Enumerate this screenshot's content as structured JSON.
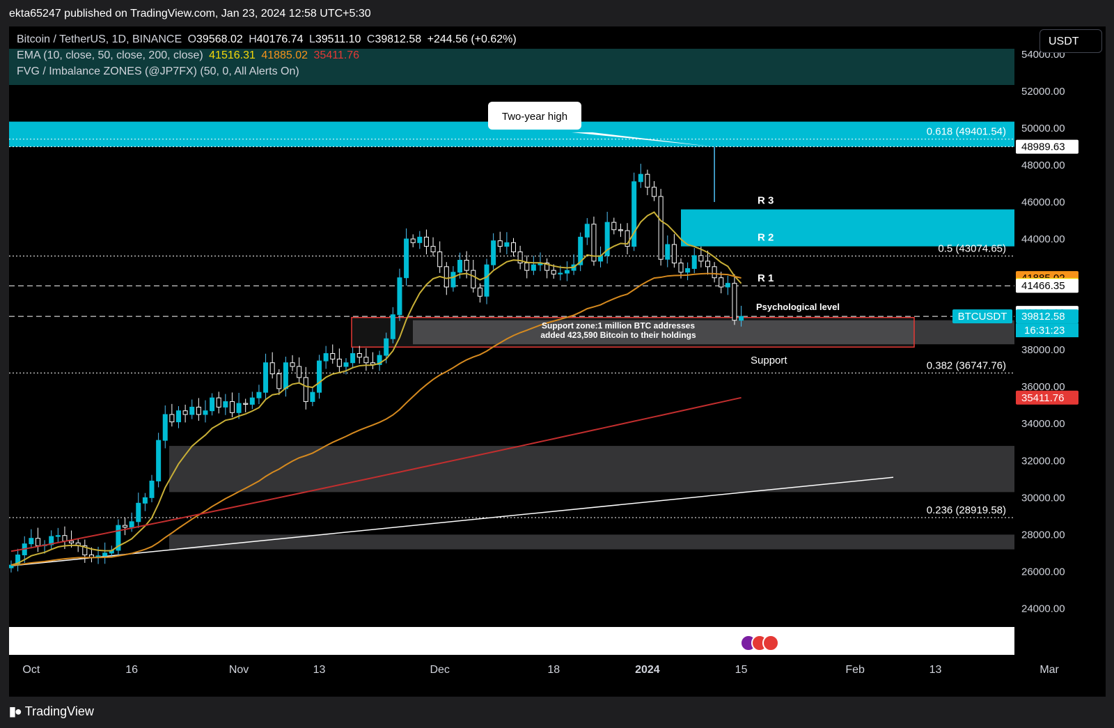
{
  "header": {
    "published": "ekta65247 published on TradingView.com, Jan 23, 2024 12:58 UTC+5:30"
  },
  "legend": {
    "symbol_line": "Bitcoin / TetherUS, 1D, BINANCE",
    "open_label": "O",
    "open": "39568.02",
    "high_label": "H",
    "high": "40176.74",
    "low_label": "L",
    "low": "39511.10",
    "close_label": "C",
    "close": "39812.58",
    "change": "+244.56 (+0.62%)",
    "ema_line": "EMA (10, close, 50, close, 200, close)",
    "ema10": "41516.31",
    "ema50": "41885.02",
    "ema200": "35411.76",
    "fvg_line": "FVG / Imbalance ZONES (@JP7FX) (50, 0, All Alerts On)"
  },
  "currency_button": "USDT",
  "brand": "TradingView",
  "colors": {
    "up": "#26a69a",
    "down": "#ffffff",
    "cyan": "#00bcd4",
    "ema10": "#c9b037",
    "ema50": "#d68a1f",
    "ema200": "#c22e2e",
    "price_tag": "#00bcd4"
  },
  "chart_data": {
    "type": "candlestick",
    "title": "Bitcoin / TetherUS, 1D, BINANCE",
    "ylim": [
      23000,
      55500
    ],
    "y_ticks": [
      "54000.00",
      "52000.00",
      "50000.00",
      "48000.00",
      "46000.00",
      "44000.00",
      "40000.00",
      "38000.00",
      "36000.00",
      "34000.00",
      "32000.00",
      "30000.00",
      "28000.00",
      "26000.00",
      "24000.00"
    ],
    "x_ticks": [
      {
        "label": "Oct",
        "date": "2023-10-01",
        "bold": false
      },
      {
        "label": "16",
        "date": "2023-10-16",
        "bold": false
      },
      {
        "label": "Nov",
        "date": "2023-11-01",
        "bold": false
      },
      {
        "label": "13",
        "date": "2023-11-13",
        "bold": false
      },
      {
        "label": "Dec",
        "date": "2023-12-01",
        "bold": false
      },
      {
        "label": "18",
        "date": "2023-12-18",
        "bold": false
      },
      {
        "label": "2024",
        "date": "2024-01-01",
        "bold": true
      },
      {
        "label": "15",
        "date": "2024-01-15",
        "bold": false
      },
      {
        "label": "Feb",
        "date": "2024-02-01",
        "bold": false
      },
      {
        "label": "13",
        "date": "2024-02-13",
        "bold": false
      },
      {
        "label": "Mar",
        "date": "2024-03-01",
        "bold": false
      }
    ],
    "start_date": "2023-09-28",
    "close_series": [
      26350,
      26900,
      27500,
      27800,
      27400,
      27450,
      27900,
      27950,
      27650,
      27550,
      27400,
      26900,
      26750,
      26850,
      27000,
      27150,
      28500,
      28400,
      28700,
      29700,
      30000,
      30900,
      33100,
      34500,
      34100,
      34700,
      34500,
      34900,
      34500,
      34700,
      35400,
      34900,
      35200,
      34600,
      35100,
      35050,
      35400,
      35700,
      37300,
      36700,
      35900,
      37300,
      37100,
      36500,
      35200,
      35700,
      37400,
      37800,
      37500,
      37100,
      37300,
      37800,
      37600,
      37300,
      37200,
      37700,
      38600,
      39900,
      41900,
      44000,
      43800,
      44100,
      43600,
      43300,
      42500,
      41400,
      42200,
      42850,
      42300,
      41350,
      40900,
      42600,
      43900,
      43600,
      43800,
      43300,
      42700,
      42300,
      42600,
      42700,
      42300,
      42100,
      42150,
      42300,
      42600,
      44100,
      44800,
      42800,
      43100,
      44900,
      44500,
      44450,
      43600,
      47100,
      47500,
      46800,
      46300,
      42900,
      43700,
      42700,
      42200,
      42400,
      43100,
      42800,
      42500,
      41900,
      41400,
      41600,
      39600,
      39812
    ],
    "highlight_peak": {
      "date": "2024-01-11",
      "value": 48989.63
    },
    "ema_series": {
      "ema10_end": 41516.31,
      "ema50_end": 41885.02,
      "ema200_end": 35411.76
    },
    "horizontal_levels": [
      {
        "value": 49401.54,
        "label": "0.618 (49401.54)",
        "style": "dotted"
      },
      {
        "value": 48989.63,
        "label": "",
        "style": "dotted"
      },
      {
        "value": 43074.65,
        "label": "0.5 (43074.65)",
        "style": "dotted"
      },
      {
        "value": 41466.35,
        "label": "",
        "style": "dashed"
      },
      {
        "value": 39812.58,
        "label": "",
        "style": "dashed"
      },
      {
        "value": 36747.76,
        "label": "0.382 (36747.76)",
        "style": "dotted"
      },
      {
        "value": 28919.58,
        "label": "0.236 (28919.58)",
        "style": "dotted"
      }
    ],
    "zones": [
      {
        "from": 48990,
        "to": 50350,
        "kind": "cyan"
      },
      {
        "from": 43600,
        "to": 45600,
        "kind": "cyan-right"
      },
      {
        "from": 38300,
        "to": 39600,
        "kind": "support"
      },
      {
        "from": 30300,
        "to": 32800,
        "kind": "fvg"
      },
      {
        "from": 27200,
        "to": 28000,
        "kind": "fvg"
      },
      {
        "from": 53900,
        "to": 55400,
        "kind": "header-teal"
      }
    ],
    "price_tags": [
      {
        "text": "48989.63",
        "value": 48989.63,
        "bg": "#ffffff",
        "fg": "#000000"
      },
      {
        "text": "41885.02",
        "value": 41885.02,
        "bg": "#f7931a",
        "fg": "#000000"
      },
      {
        "text": "41516.31",
        "value": 41516.31,
        "bg": "#f5d90a",
        "fg": "#000000"
      },
      {
        "text": "41466.35",
        "value": 41466.35,
        "bg": "#ffffff",
        "fg": "#000000"
      },
      {
        "text": "40000.00",
        "value": 40000,
        "bg": "#ffffff",
        "fg": "#000000"
      },
      {
        "text": "39812.58",
        "value": 39812.58,
        "bg": "#00bcd4",
        "fg": "#ffffff"
      },
      {
        "text": "35411.76",
        "value": 35411.76,
        "bg": "#e53935",
        "fg": "#ffffff"
      }
    ],
    "countdown": "16:31:23",
    "symbol_tag": "BTCUSDT",
    "annotations": {
      "callout": "Two-year high",
      "r3": "R 3",
      "r2": "R 2",
      "r1": "R 1",
      "psych": "Psychological level",
      "support_zone_1": "Support zone:1 million BTC addresses",
      "support_zone_2": "added 423,590 Bitcoin to their holdings",
      "support": "Support"
    }
  }
}
